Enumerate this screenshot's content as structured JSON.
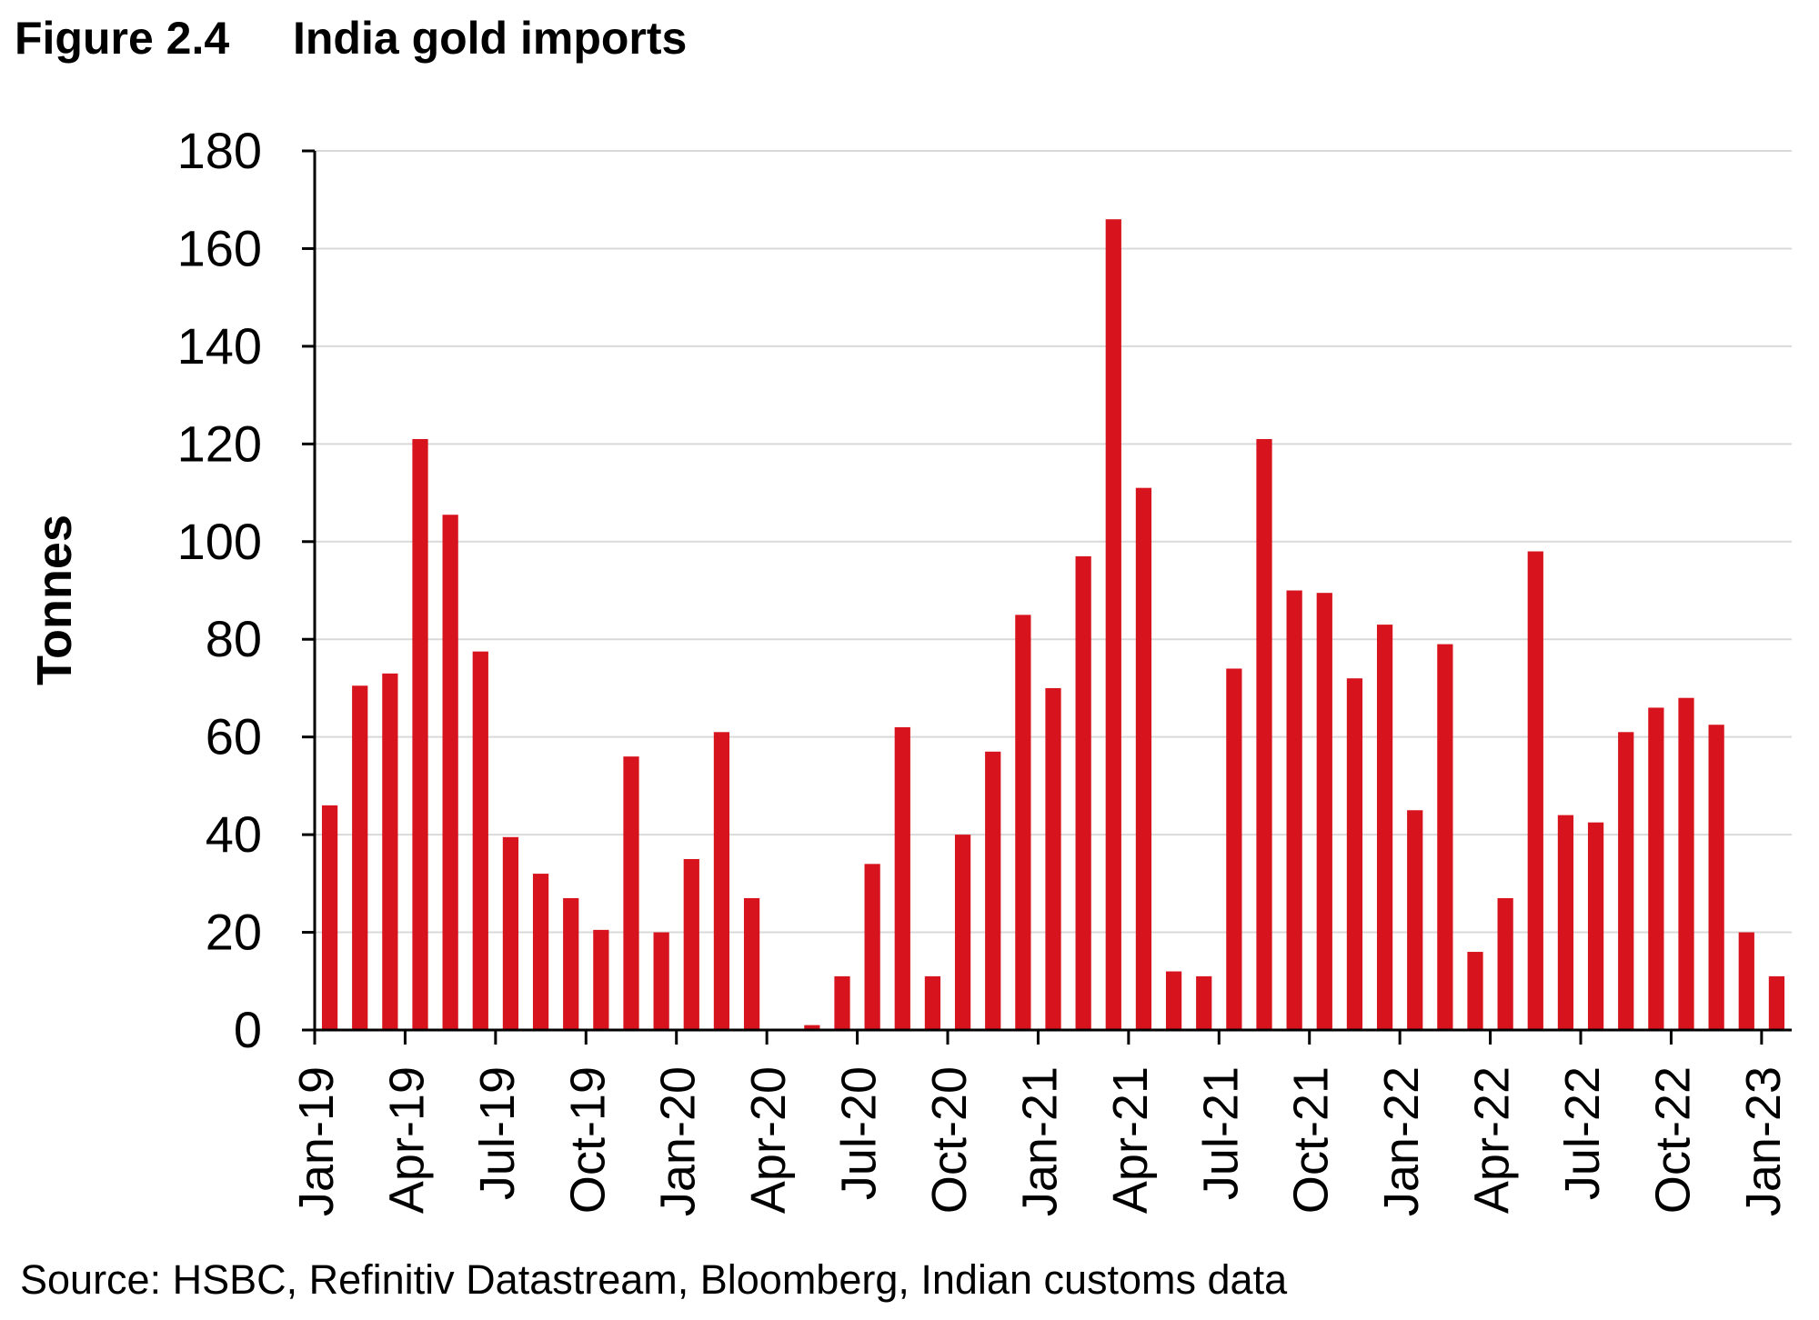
{
  "figure": {
    "number": "Figure 2.4",
    "title": "India gold imports",
    "source": "Source: HSBC, Refinitiv Datastream, Bloomberg, Indian customs data"
  },
  "colors": {
    "bar": "#d7141d",
    "axis": "#000000",
    "grid": "#d9d9d9",
    "text": "#000000"
  },
  "chart_data": {
    "type": "bar",
    "title": "India gold imports",
    "xlabel": "",
    "ylabel": "Tonnes",
    "ylim": [
      0,
      180
    ],
    "yticks": [
      0,
      20,
      40,
      60,
      80,
      100,
      120,
      140,
      160,
      180
    ],
    "grid": true,
    "legend": "none",
    "tick_labels": [
      "Jan-19",
      "Apr-19",
      "Jul-19",
      "Oct-19",
      "Jan-20",
      "Apr-20",
      "Jul-20",
      "Oct-20",
      "Jan-21",
      "Apr-21",
      "Jul-21",
      "Oct-21",
      "Jan-22",
      "Apr-22",
      "Jul-22",
      "Oct-22",
      "Jan-23"
    ],
    "categories": [
      "Jan-19",
      "Feb-19",
      "Mar-19",
      "Apr-19",
      "May-19",
      "Jun-19",
      "Jul-19",
      "Aug-19",
      "Sep-19",
      "Oct-19",
      "Nov-19",
      "Dec-19",
      "Jan-20",
      "Feb-20",
      "Mar-20",
      "Apr-20",
      "May-20",
      "Jun-20",
      "Jul-20",
      "Aug-20",
      "Sep-20",
      "Oct-20",
      "Nov-20",
      "Dec-20",
      "Jan-21",
      "Feb-21",
      "Mar-21",
      "Apr-21",
      "May-21",
      "Jun-21",
      "Jul-21",
      "Aug-21",
      "Sep-21",
      "Oct-21",
      "Nov-21",
      "Dec-21",
      "Jan-22",
      "Feb-22",
      "Mar-22",
      "Apr-22",
      "May-22",
      "Jun-22",
      "Jul-22",
      "Aug-22",
      "Sep-22",
      "Oct-22",
      "Nov-22",
      "Dec-22",
      "Jan-23"
    ],
    "series": [
      {
        "name": "India gold imports",
        "values": [
          46,
          70.5,
          73,
          121,
          105.5,
          77.5,
          39.5,
          32,
          27,
          20.5,
          56,
          20,
          35,
          61,
          27,
          0,
          1,
          11,
          34,
          62,
          11,
          40,
          57,
          85,
          70,
          97,
          166,
          111,
          12,
          11,
          74,
          121,
          90,
          89.5,
          72,
          83,
          45,
          79,
          16,
          27,
          98,
          44,
          42.5,
          61,
          66,
          68,
          62.5,
          20,
          11
        ]
      }
    ]
  }
}
